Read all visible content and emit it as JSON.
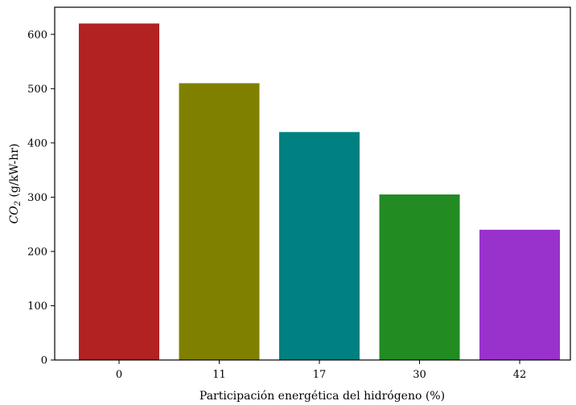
{
  "chart_data": {
    "type": "bar",
    "categories": [
      "0",
      "11",
      "17",
      "30",
      "42"
    ],
    "values": [
      620,
      510,
      420,
      305,
      240
    ],
    "colors": [
      "#b22222",
      "#808000",
      "#008080",
      "#228b22",
      "#9932cc"
    ],
    "xlabel": "Participación energética del hidrógeno (%)",
    "ylabel": {
      "main": "CO",
      "subscript": "2",
      "suffix": " (g/kW-hr)"
    },
    "ylim": [
      0,
      650
    ],
    "yticks": [
      0,
      100,
      200,
      300,
      400,
      500,
      600
    ],
    "grid": false,
    "legend": "none"
  }
}
